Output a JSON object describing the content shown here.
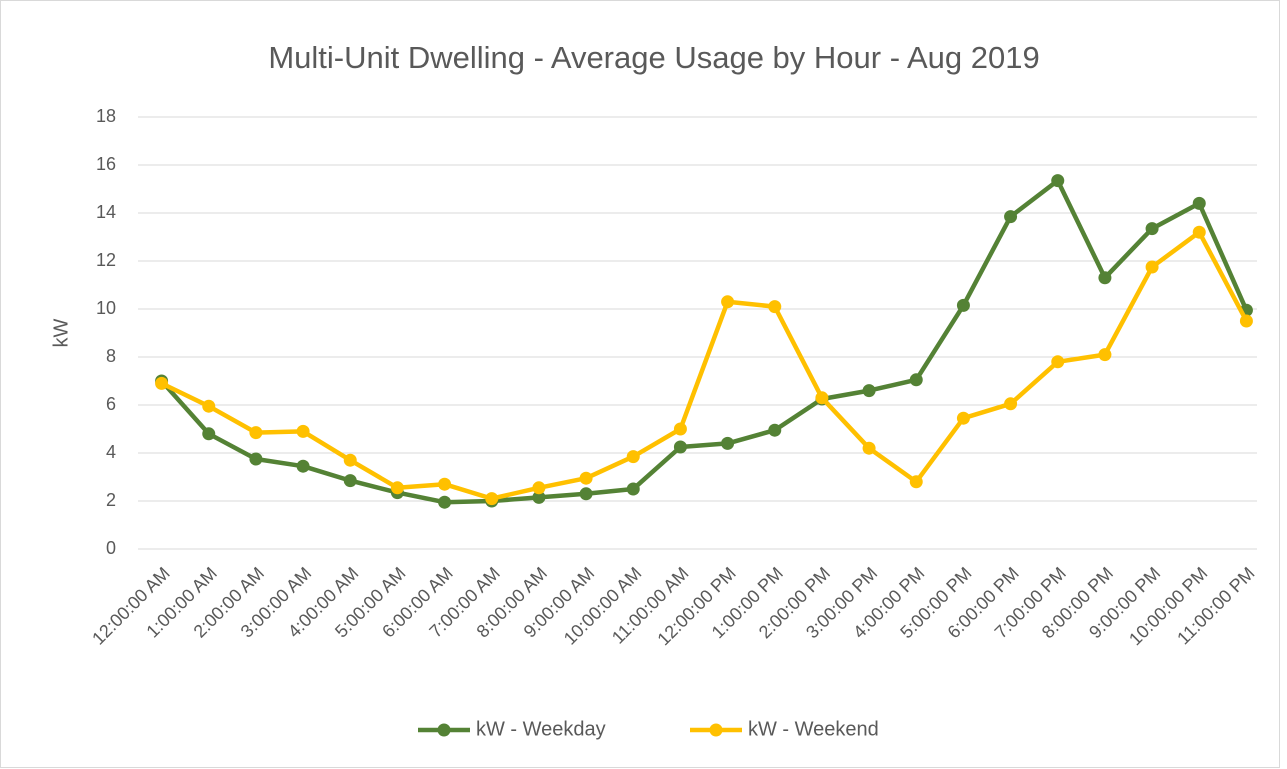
{
  "chart_data": {
    "type": "line",
    "title": "Multi-Unit Dwelling - Average Usage by Hour - Aug 2019",
    "y_label": "kW",
    "categories": [
      "12:00:00 AM",
      "1:00:00 AM",
      "2:00:00 AM",
      "3:00:00 AM",
      "4:00:00 AM",
      "5:00:00 AM",
      "6:00:00 AM",
      "7:00:00 AM",
      "8:00:00 AM",
      "9:00:00 AM",
      "10:00:00 AM",
      "11:00:00 AM",
      "12:00:00 PM",
      "1:00:00 PM",
      "2:00:00 PM",
      "3:00:00 PM",
      "4:00:00 PM",
      "5:00:00 PM",
      "6:00:00 PM",
      "7:00:00 PM",
      "8:00:00 PM",
      "9:00:00 PM",
      "10:00:00 PM",
      "11:00:00 PM"
    ],
    "series": [
      {
        "name": "kW - Weekday",
        "color": "#548235",
        "values": [
          7.0,
          4.8,
          3.75,
          3.45,
          2.85,
          2.35,
          1.95,
          2.0,
          2.15,
          2.3,
          2.5,
          4.25,
          4.4,
          4.95,
          6.25,
          6.6,
          7.05,
          10.15,
          13.85,
          15.35,
          11.3,
          13.35,
          14.4,
          9.95
        ]
      },
      {
        "name": "kW - Weekend",
        "color": "#ffc000",
        "values": [
          6.9,
          5.95,
          4.85,
          4.9,
          3.7,
          2.55,
          2.7,
          2.1,
          2.55,
          2.95,
          3.85,
          5.0,
          10.3,
          10.1,
          6.3,
          4.2,
          2.8,
          5.45,
          6.05,
          7.8,
          8.1,
          11.75,
          13.2,
          9.5
        ]
      }
    ],
    "ylim": [
      0,
      18
    ],
    "yticks": [
      0,
      2,
      4,
      6,
      8,
      10,
      12,
      14,
      16,
      18
    ],
    "grid": true,
    "legend": "bottom"
  }
}
